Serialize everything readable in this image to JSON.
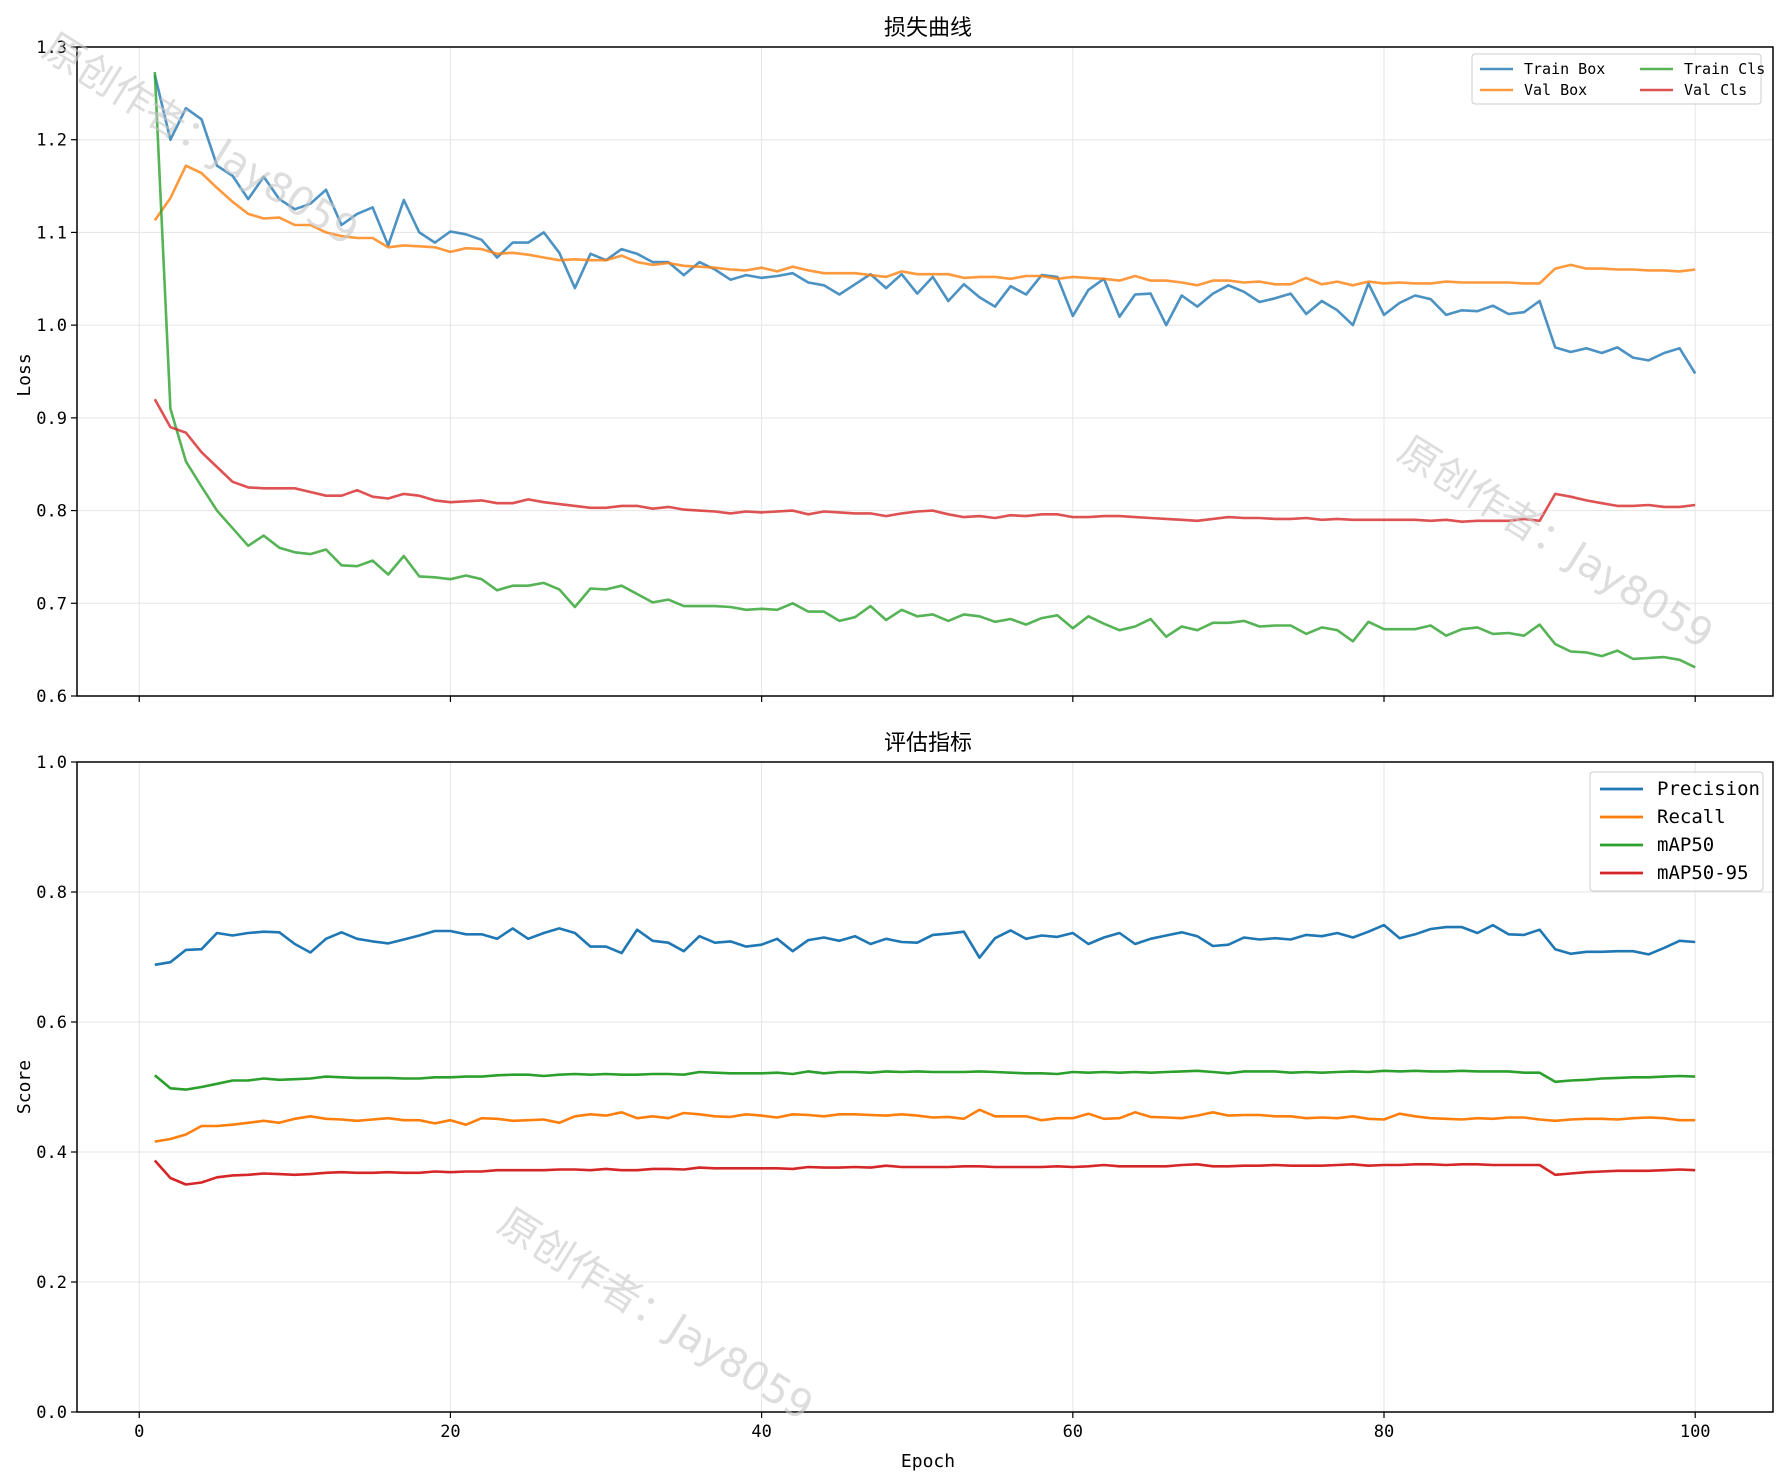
{
  "watermark": "原创作者：Jay8059",
  "chart_data": [
    {
      "type": "line",
      "title": "损失曲线",
      "xlabel": "",
      "ylabel": "Loss",
      "xlim": [
        -4,
        105
      ],
      "ylim": [
        0.6,
        1.3
      ],
      "xticks": [
        0,
        20,
        40,
        60,
        80,
        100
      ],
      "show_xtick_labels": false,
      "yticks": [
        0.6,
        0.7,
        0.8,
        0.9,
        1.0,
        1.1,
        1.2,
        1.3
      ],
      "ytick_labels": [
        "0.6",
        "0.7",
        "0.8",
        "0.9",
        "1.0",
        "1.1",
        "1.2",
        "1.3"
      ],
      "grid": true,
      "legend": {
        "position": "top-right",
        "columns": 2,
        "order": [
          "Train Box",
          "Val Box",
          "Train Cls",
          "Val Cls"
        ]
      },
      "x_start": 1,
      "series": [
        {
          "name": "Train Box",
          "color": "#1f77b4",
          "values": [
            1.27,
            1.2,
            1.234,
            1.222,
            1.172,
            1.161,
            1.136,
            1.16,
            1.136,
            1.125,
            1.131,
            1.146,
            1.108,
            1.12,
            1.127,
            1.086,
            1.135,
            1.1,
            1.089,
            1.101,
            1.098,
            1.092,
            1.073,
            1.089,
            1.089,
            1.1,
            1.078,
            1.04,
            1.077,
            1.07,
            1.082,
            1.077,
            1.068,
            1.068,
            1.054,
            1.068,
            1.06,
            1.049,
            1.054,
            1.051,
            1.053,
            1.056,
            1.046,
            1.043,
            1.033,
            1.044,
            1.055,
            1.04,
            1.055,
            1.034,
            1.052,
            1.026,
            1.044,
            1.03,
            1.02,
            1.042,
            1.033,
            1.054,
            1.052,
            1.01,
            1.038,
            1.05,
            1.009,
            1.033,
            1.034,
            1.0,
            1.032,
            1.02,
            1.034,
            1.043,
            1.036,
            1.025,
            1.029,
            1.034,
            1.012,
            1.026,
            1.016,
            1.0,
            1.045,
            1.011,
            1.024,
            1.032,
            1.028,
            1.011,
            1.016,
            1.015,
            1.021,
            1.012,
            1.014,
            1.026,
            0.976,
            0.971,
            0.975,
            0.97,
            0.976,
            0.965,
            0.962,
            0.97,
            0.975,
            0.948
          ]
        },
        {
          "name": "Val Box",
          "color": "#ff7f0e",
          "values": [
            1.113,
            1.137,
            1.172,
            1.164,
            1.148,
            1.133,
            1.12,
            1.115,
            1.116,
            1.108,
            1.108,
            1.1,
            1.096,
            1.094,
            1.094,
            1.084,
            1.086,
            1.085,
            1.084,
            1.079,
            1.083,
            1.082,
            1.077,
            1.078,
            1.076,
            1.073,
            1.07,
            1.071,
            1.07,
            1.07,
            1.075,
            1.068,
            1.065,
            1.067,
            1.064,
            1.063,
            1.062,
            1.06,
            1.059,
            1.062,
            1.058,
            1.063,
            1.059,
            1.056,
            1.056,
            1.056,
            1.054,
            1.052,
            1.058,
            1.055,
            1.055,
            1.055,
            1.051,
            1.052,
            1.052,
            1.05,
            1.053,
            1.053,
            1.05,
            1.052,
            1.051,
            1.05,
            1.048,
            1.053,
            1.048,
            1.048,
            1.046,
            1.043,
            1.048,
            1.048,
            1.046,
            1.047,
            1.044,
            1.044,
            1.051,
            1.044,
            1.047,
            1.043,
            1.047,
            1.045,
            1.046,
            1.045,
            1.045,
            1.047,
            1.046,
            1.046,
            1.046,
            1.046,
            1.045,
            1.045,
            1.061,
            1.065,
            1.061,
            1.061,
            1.06,
            1.06,
            1.059,
            1.059,
            1.058,
            1.06
          ]
        },
        {
          "name": "Train Cls",
          "color": "#2ca02c",
          "values": [
            1.273,
            0.91,
            0.853,
            0.826,
            0.8,
            0.781,
            0.762,
            0.773,
            0.76,
            0.755,
            0.753,
            0.758,
            0.741,
            0.74,
            0.746,
            0.731,
            0.751,
            0.729,
            0.728,
            0.726,
            0.73,
            0.726,
            0.714,
            0.719,
            0.719,
            0.722,
            0.715,
            0.696,
            0.716,
            0.715,
            0.719,
            0.71,
            0.701,
            0.704,
            0.697,
            0.697,
            0.697,
            0.696,
            0.693,
            0.694,
            0.693,
            0.7,
            0.691,
            0.691,
            0.681,
            0.685,
            0.697,
            0.682,
            0.693,
            0.686,
            0.688,
            0.681,
            0.688,
            0.686,
            0.68,
            0.683,
            0.677,
            0.684,
            0.687,
            0.673,
            0.686,
            0.678,
            0.671,
            0.675,
            0.683,
            0.664,
            0.675,
            0.671,
            0.679,
            0.679,
            0.681,
            0.675,
            0.676,
            0.676,
            0.667,
            0.674,
            0.671,
            0.659,
            0.68,
            0.672,
            0.672,
            0.672,
            0.676,
            0.665,
            0.672,
            0.674,
            0.667,
            0.668,
            0.665,
            0.677,
            0.656,
            0.648,
            0.647,
            0.643,
            0.649,
            0.64,
            0.641,
            0.642,
            0.639,
            0.631
          ]
        },
        {
          "name": "Val Cls",
          "color": "#d62728",
          "values": [
            0.92,
            0.89,
            0.884,
            0.863,
            0.847,
            0.831,
            0.825,
            0.824,
            0.824,
            0.824,
            0.82,
            0.816,
            0.816,
            0.822,
            0.815,
            0.813,
            0.818,
            0.816,
            0.811,
            0.809,
            0.81,
            0.811,
            0.808,
            0.808,
            0.812,
            0.809,
            0.807,
            0.805,
            0.803,
            0.803,
            0.805,
            0.805,
            0.802,
            0.804,
            0.801,
            0.8,
            0.799,
            0.797,
            0.799,
            0.798,
            0.799,
            0.8,
            0.796,
            0.799,
            0.798,
            0.797,
            0.797,
            0.794,
            0.797,
            0.799,
            0.8,
            0.796,
            0.793,
            0.794,
            0.792,
            0.795,
            0.794,
            0.796,
            0.796,
            0.793,
            0.793,
            0.794,
            0.794,
            0.793,
            0.792,
            0.791,
            0.79,
            0.789,
            0.791,
            0.793,
            0.792,
            0.792,
            0.791,
            0.791,
            0.792,
            0.79,
            0.791,
            0.79,
            0.79,
            0.79,
            0.79,
            0.79,
            0.789,
            0.79,
            0.788,
            0.789,
            0.789,
            0.789,
            0.791,
            0.789,
            0.818,
            0.815,
            0.811,
            0.808,
            0.805,
            0.805,
            0.806,
            0.804,
            0.804,
            0.806
          ]
        }
      ]
    },
    {
      "type": "line",
      "title": "评估指标",
      "xlabel": "Epoch",
      "ylabel": "Score",
      "xlim": [
        -4,
        105
      ],
      "ylim": [
        0.0,
        1.0
      ],
      "xticks": [
        0,
        20,
        40,
        60,
        80,
        100
      ],
      "xtick_labels": [
        "0",
        "20",
        "40",
        "60",
        "80",
        "100"
      ],
      "show_xtick_labels": true,
      "yticks": [
        0.0,
        0.2,
        0.4,
        0.6,
        0.8,
        1.0
      ],
      "ytick_labels": [
        "0.0",
        "0.2",
        "0.4",
        "0.6",
        "0.8",
        "1.0"
      ],
      "grid": true,
      "legend": {
        "position": "top-right",
        "columns": 1,
        "order": [
          "Precision",
          "Recall",
          "mAP50",
          "mAP50-95"
        ]
      },
      "x_start": 1,
      "series": [
        {
          "name": "Precision",
          "color": "#1f77b4",
          "values": [
            0.688,
            0.692,
            0.711,
            0.712,
            0.737,
            0.733,
            0.737,
            0.739,
            0.738,
            0.72,
            0.707,
            0.728,
            0.738,
            0.728,
            0.724,
            0.721,
            0.727,
            0.733,
            0.74,
            0.74,
            0.735,
            0.735,
            0.728,
            0.744,
            0.728,
            0.737,
            0.744,
            0.737,
            0.716,
            0.716,
            0.706,
            0.742,
            0.725,
            0.722,
            0.709,
            0.732,
            0.722,
            0.724,
            0.716,
            0.719,
            0.728,
            0.709,
            0.726,
            0.73,
            0.725,
            0.732,
            0.72,
            0.728,
            0.723,
            0.722,
            0.734,
            0.736,
            0.739,
            0.699,
            0.729,
            0.741,
            0.728,
            0.733,
            0.731,
            0.737,
            0.72,
            0.73,
            0.737,
            0.72,
            0.728,
            0.733,
            0.738,
            0.732,
            0.717,
            0.719,
            0.73,
            0.727,
            0.729,
            0.727,
            0.734,
            0.732,
            0.737,
            0.73,
            0.739,
            0.749,
            0.729,
            0.735,
            0.743,
            0.746,
            0.746,
            0.737,
            0.749,
            0.735,
            0.734,
            0.742,
            0.712,
            0.705,
            0.708,
            0.708,
            0.709,
            0.709,
            0.704,
            0.714,
            0.725,
            0.723
          ]
        },
        {
          "name": "Recall",
          "color": "#ff7f0e",
          "values": [
            0.416,
            0.42,
            0.427,
            0.44,
            0.44,
            0.442,
            0.445,
            0.448,
            0.445,
            0.451,
            0.455,
            0.451,
            0.45,
            0.448,
            0.45,
            0.452,
            0.449,
            0.449,
            0.444,
            0.449,
            0.442,
            0.452,
            0.451,
            0.448,
            0.449,
            0.45,
            0.445,
            0.455,
            0.458,
            0.456,
            0.461,
            0.452,
            0.455,
            0.452,
            0.46,
            0.458,
            0.455,
            0.454,
            0.458,
            0.456,
            0.453,
            0.458,
            0.457,
            0.455,
            0.458,
            0.458,
            0.457,
            0.456,
            0.458,
            0.456,
            0.453,
            0.454,
            0.451,
            0.465,
            0.455,
            0.455,
            0.455,
            0.449,
            0.452,
            0.452,
            0.459,
            0.451,
            0.452,
            0.461,
            0.454,
            0.453,
            0.452,
            0.456,
            0.461,
            0.456,
            0.457,
            0.457,
            0.455,
            0.455,
            0.452,
            0.453,
            0.452,
            0.455,
            0.451,
            0.45,
            0.459,
            0.455,
            0.452,
            0.451,
            0.45,
            0.452,
            0.451,
            0.453,
            0.453,
            0.45,
            0.448,
            0.45,
            0.451,
            0.451,
            0.45,
            0.452,
            0.453,
            0.452,
            0.449,
            0.449
          ]
        },
        {
          "name": "mAP50",
          "color": "#2ca02c",
          "values": [
            0.518,
            0.498,
            0.496,
            0.5,
            0.505,
            0.51,
            0.51,
            0.513,
            0.511,
            0.512,
            0.513,
            0.516,
            0.515,
            0.514,
            0.514,
            0.514,
            0.513,
            0.513,
            0.515,
            0.515,
            0.516,
            0.516,
            0.518,
            0.519,
            0.519,
            0.517,
            0.519,
            0.52,
            0.519,
            0.52,
            0.519,
            0.519,
            0.52,
            0.52,
            0.519,
            0.523,
            0.522,
            0.521,
            0.521,
            0.521,
            0.522,
            0.52,
            0.524,
            0.521,
            0.523,
            0.523,
            0.522,
            0.524,
            0.523,
            0.524,
            0.523,
            0.523,
            0.523,
            0.524,
            0.523,
            0.522,
            0.521,
            0.521,
            0.52,
            0.523,
            0.522,
            0.523,
            0.522,
            0.523,
            0.522,
            0.523,
            0.524,
            0.525,
            0.523,
            0.521,
            0.524,
            0.524,
            0.524,
            0.522,
            0.523,
            0.522,
            0.523,
            0.524,
            0.523,
            0.525,
            0.524,
            0.525,
            0.524,
            0.524,
            0.525,
            0.524,
            0.524,
            0.524,
            0.522,
            0.522,
            0.508,
            0.51,
            0.511,
            0.513,
            0.514,
            0.515,
            0.515,
            0.516,
            0.517,
            0.516
          ]
        },
        {
          "name": "mAP50-95",
          "color": "#d62728",
          "values": [
            0.387,
            0.36,
            0.35,
            0.353,
            0.361,
            0.364,
            0.365,
            0.367,
            0.366,
            0.365,
            0.366,
            0.368,
            0.369,
            0.368,
            0.368,
            0.369,
            0.368,
            0.368,
            0.37,
            0.369,
            0.37,
            0.37,
            0.372,
            0.372,
            0.372,
            0.372,
            0.373,
            0.373,
            0.372,
            0.374,
            0.372,
            0.372,
            0.374,
            0.374,
            0.373,
            0.376,
            0.375,
            0.375,
            0.375,
            0.375,
            0.375,
            0.374,
            0.377,
            0.376,
            0.376,
            0.377,
            0.376,
            0.379,
            0.377,
            0.377,
            0.377,
            0.377,
            0.378,
            0.378,
            0.377,
            0.377,
            0.377,
            0.377,
            0.378,
            0.377,
            0.378,
            0.38,
            0.378,
            0.378,
            0.378,
            0.378,
            0.38,
            0.381,
            0.378,
            0.378,
            0.379,
            0.379,
            0.38,
            0.379,
            0.379,
            0.379,
            0.38,
            0.381,
            0.379,
            0.38,
            0.38,
            0.381,
            0.381,
            0.38,
            0.381,
            0.381,
            0.38,
            0.38,
            0.38,
            0.38,
            0.365,
            0.367,
            0.369,
            0.37,
            0.371,
            0.371,
            0.371,
            0.372,
            0.373,
            0.372
          ]
        }
      ]
    }
  ]
}
